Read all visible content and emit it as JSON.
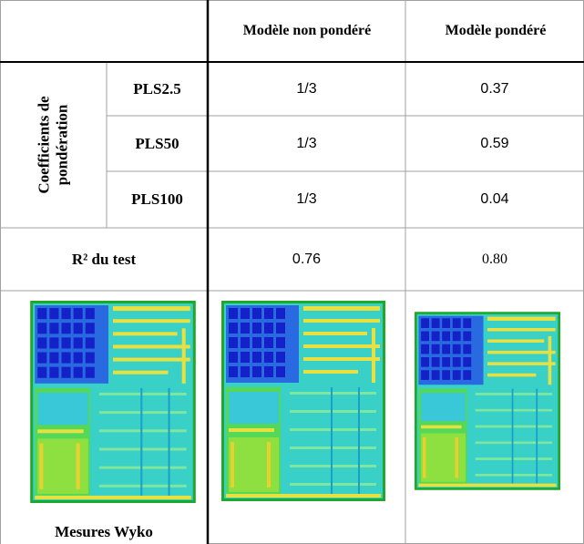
{
  "header": {
    "col1": "Modèle non pondéré",
    "col2": "Modèle pondéré"
  },
  "group_label": "Coefficients de pondération",
  "rows": [
    {
      "name": "PLS2.5",
      "non_pondere": "1/3",
      "pondere": "0.37"
    },
    {
      "name": "PLS50",
      "non_pondere": "1/3",
      "pondere": "0.59"
    },
    {
      "name": "PLS100",
      "non_pondere": "1/3",
      "pondere": "0.04"
    }
  ],
  "r2": {
    "label": "R² du test",
    "non_pondere": "0.76",
    "pondere": "0.80"
  },
  "caption": "Mesures Wyko"
}
